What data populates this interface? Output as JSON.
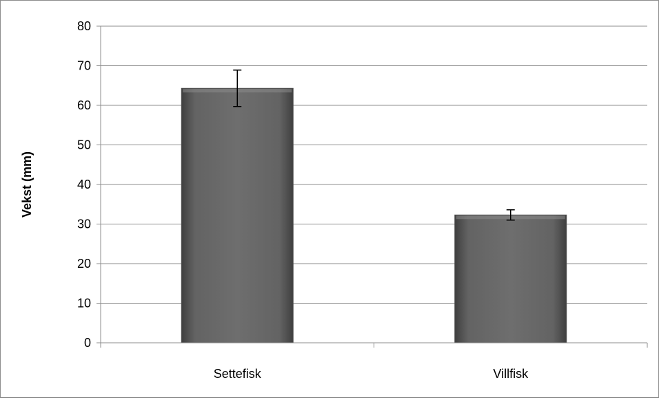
{
  "chart_data": {
    "type": "bar",
    "title": "",
    "xlabel": "",
    "ylabel": "Vekst (mm)",
    "categories": [
      "Settefisk",
      "Villfisk"
    ],
    "values": [
      64.3,
      32.3
    ],
    "error_bars": [
      [
        59.7,
        68.9
      ],
      [
        31.0,
        33.6
      ]
    ],
    "ylim": [
      0,
      80
    ],
    "yticks": [
      "0",
      "10",
      "20",
      "30",
      "40",
      "50",
      "60",
      "70",
      "80"
    ],
    "grid": true,
    "legend": "none",
    "colors": {
      "bar_dark": "#3f3f3f",
      "bar_mid": "#636363",
      "bar_light": "#6e6e6e",
      "grid": "#8c8c8c",
      "axis": "#8c8c8c",
      "error_bar": "#000000",
      "text": "#000000"
    }
  }
}
